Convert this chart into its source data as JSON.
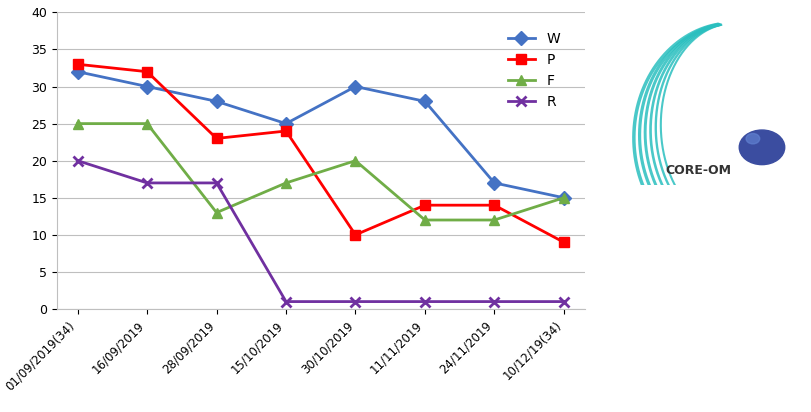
{
  "x_labels": [
    "01/09/2019(34)",
    "16/09/2019",
    "28/09/2019",
    "15/10/2019",
    "30/10/2019",
    "11/11/2019",
    "24/11/2019",
    "10/12/19(34)"
  ],
  "W": [
    32,
    30,
    28,
    25,
    30,
    28,
    17,
    15
  ],
  "P": [
    33,
    32,
    23,
    24,
    10,
    14,
    14,
    9
  ],
  "F": [
    25,
    25,
    13,
    17,
    20,
    12,
    12,
    15
  ],
  "R": [
    20,
    17,
    17,
    1,
    1,
    1,
    1,
    1
  ],
  "W_color": "#4472C4",
  "P_color": "#FF0000",
  "F_color": "#70AD47",
  "R_color": "#7030A0",
  "ylim": [
    0,
    40
  ],
  "yticks": [
    0,
    5,
    10,
    15,
    20,
    25,
    30,
    35,
    40
  ],
  "grid_color": "#BFBFBF",
  "background_color": "#FFFFFF"
}
